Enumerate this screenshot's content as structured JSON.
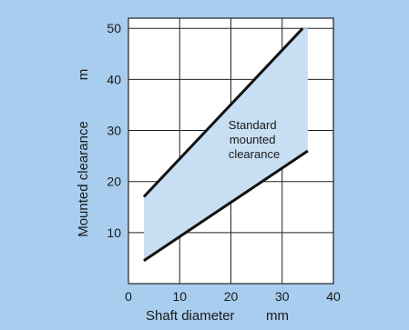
{
  "chart_data": {
    "type": "line",
    "title": "",
    "xlabel": "Shaft diameter",
    "xunit": "mm",
    "ylabel": "Mounted clearance",
    "yunit": "m",
    "xlim": [
      0,
      40
    ],
    "ylim": [
      0,
      52
    ],
    "xticks": [
      0,
      10,
      20,
      30,
      40
    ],
    "yticks": [
      10,
      20,
      30,
      40,
      50
    ],
    "grid": true,
    "series": [
      {
        "role": "upper",
        "x": [
          3,
          34
        ],
        "y": [
          17,
          50
        ]
      },
      {
        "role": "lower",
        "x": [
          3,
          35
        ],
        "y": [
          4.5,
          26
        ]
      }
    ],
    "band": {
      "label_lines": [
        "Standard",
        "mounted",
        "clearance"
      ],
      "color": "#c8dff3",
      "x_right": 35,
      "y_right_top": 50,
      "y_right_bottom": 26
    },
    "colors": {
      "background": "#a8cdee",
      "plot_area": "#ffffff",
      "grid": "#222222",
      "line": "#111111",
      "band": "#c8dff3"
    }
  }
}
